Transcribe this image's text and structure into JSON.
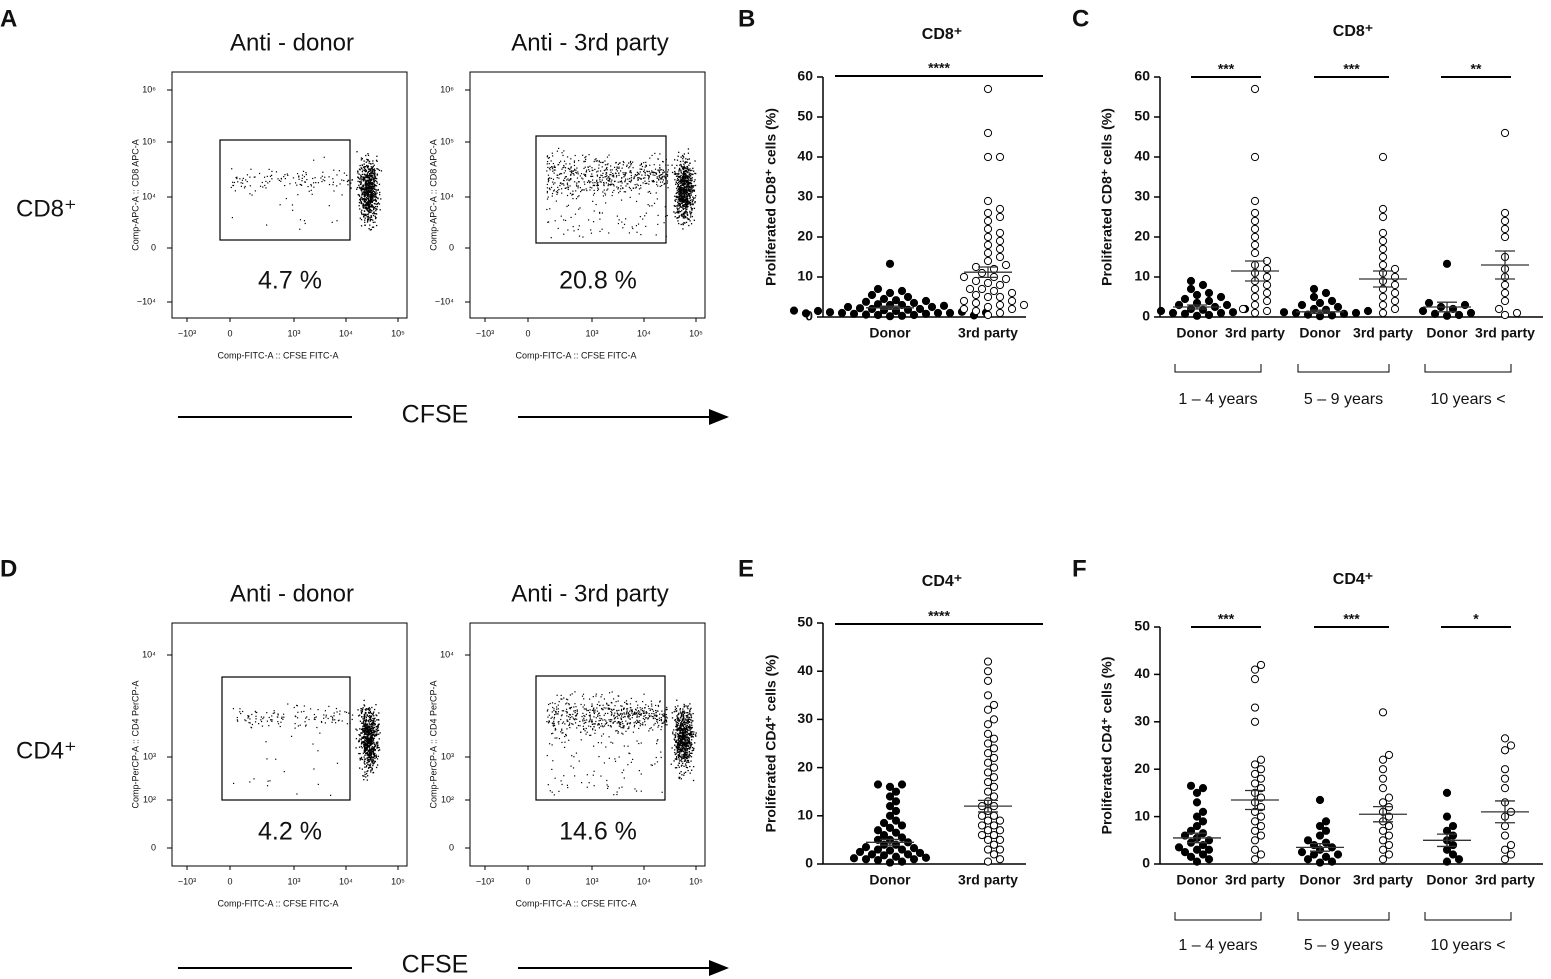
{
  "panel_labels": [
    "A",
    "B",
    "C",
    "D",
    "E",
    "F"
  ],
  "cfse_label": "CFSE",
  "flow_x_ticks": [
    "−10³",
    "0",
    "10³",
    "10⁴",
    "10⁵"
  ],
  "flow_rows": [
    {
      "label": "CD8⁺",
      "y_ticks": [
        "10⁶",
        "10⁵",
        "10⁴",
        "0",
        "−10⁴"
      ],
      "plots": [
        {
          "title": "Anti - donor",
          "percent": "4.7 %",
          "y_axis_label": "Comp-APC-A :: CD8 APC-A",
          "x_axis_label": "Comp-FITC-A :: CFSE FITC-A"
        },
        {
          "title": "Anti - 3rd party",
          "percent": "20.8 %",
          "y_axis_label": "Comp-APC-A :: CD8 APC-A",
          "x_axis_label": "Comp-FITC-A :: CFSE FITC-A"
        }
      ]
    },
    {
      "label": "CD4⁺",
      "y_ticks": [
        "10⁴",
        "10³",
        "10²",
        "0"
      ],
      "plots": [
        {
          "title": "Anti - donor",
          "percent": "4.2 %",
          "y_axis_label": "Comp-PerCP-A :: CD4 PerCP-A",
          "x_axis_label": "Comp-FITC-A :: CFSE FITC-A"
        },
        {
          "title": "Anti - 3rd party",
          "percent": "14.6 %",
          "y_axis_label": "Comp-PerCP-A :: CD4 PerCP-A",
          "x_axis_label": "Comp-FITC-A :: CFSE FITC-A"
        }
      ]
    }
  ],
  "chart_data": [
    {
      "type": "dot",
      "title": "CD8⁺",
      "ylabel": "Proliferated CD8⁺ cells (%)",
      "ylim": [
        0,
        60
      ],
      "yticks": [
        0,
        10,
        20,
        30,
        40,
        50,
        60
      ],
      "significance": [
        "****"
      ],
      "groups": [
        {
          "category": "Donor",
          "color": "#000000",
          "values": [
            0.2,
            0.3,
            0.5,
            0.5,
            0.6,
            0.8,
            0.8,
            1,
            1,
            1,
            1.2,
            1.3,
            1.5,
            1.5,
            1.7,
            1.8,
            2,
            2,
            2.2,
            2.5,
            2.5,
            2.8,
            3,
            3,
            3.2,
            3.5,
            3.8,
            4,
            4.2,
            4.5,
            5,
            5.5,
            6,
            6.5,
            7,
            0.4,
            0.9,
            1.1,
            1.6,
            13.3
          ],
          "mean": 2.3,
          "sem": 0.4
        },
        {
          "category": "3rd party",
          "color": "#ffffff",
          "values": [
            0.5,
            1,
            1.5,
            2,
            2,
            2.5,
            3,
            3,
            3.5,
            4,
            4,
            5,
            5,
            5.5,
            6,
            6.5,
            7,
            7,
            8,
            8.5,
            9,
            9.5,
            10,
            10,
            11,
            12,
            12.5,
            13,
            14,
            15,
            16,
            17,
            18,
            19,
            20,
            21,
            22,
            24,
            25,
            26,
            27,
            29,
            40,
            40,
            46,
            57
          ],
          "mean": 11.2,
          "sem": 1.3
        }
      ]
    },
    {
      "type": "dot",
      "title": "CD8⁺",
      "ylabel": "Proliferated CD8⁺ cells (%)",
      "ylim": [
        0,
        60
      ],
      "yticks": [
        0,
        10,
        20,
        30,
        40,
        50,
        60
      ],
      "significance": [
        "***",
        "***",
        "**"
      ],
      "age_groups": [
        "1 – 4 years",
        "5 – 9 years",
        "10 years <"
      ],
      "groups": [
        {
          "category": "Donor",
          "color": "#000000",
          "values": [
            0.3,
            0.5,
            0.8,
            1,
            1,
            1.2,
            1.5,
            1.8,
            2,
            2,
            2.5,
            3,
            3,
            3.5,
            4,
            4.5,
            5,
            5.5,
            6,
            7,
            8,
            9
          ],
          "mean": 2.5,
          "sem": 0.5
        },
        {
          "category": "3rd party",
          "color": "#ffffff",
          "values": [
            1,
            1.5,
            2,
            3,
            4,
            5,
            6,
            7,
            8,
            9,
            10,
            11,
            12,
            13,
            14,
            16,
            18,
            20,
            22,
            24,
            26,
            29,
            40,
            57
          ],
          "mean": 11.5,
          "sem": 2.5
        },
        {
          "category": "Donor",
          "color": "#000000",
          "values": [
            0.2,
            0.4,
            0.6,
            0.8,
            1,
            1,
            1.2,
            1.5,
            1.8,
            2,
            2.5,
            3,
            3.5,
            4,
            5,
            6,
            7
          ],
          "mean": 1.3,
          "sem": 0.4
        },
        {
          "category": "3rd party",
          "color": "#ffffff",
          "values": [
            1,
            2,
            3,
            4,
            5,
            6,
            7,
            8,
            9,
            10,
            11,
            12,
            13,
            15,
            17,
            19,
            21,
            25,
            27,
            40
          ],
          "mean": 9.5,
          "sem": 2
        },
        {
          "category": "Donor",
          "color": "#000000",
          "values": [
            0.3,
            0.5,
            0.8,
            1,
            1.5,
            2,
            2.5,
            3,
            3.5,
            13.3
          ],
          "mean": 2.5,
          "sem": 1.2
        },
        {
          "category": "3rd party",
          "color": "#ffffff",
          "values": [
            0.5,
            1,
            2,
            4,
            6,
            8,
            10,
            12,
            15,
            20,
            22,
            24,
            26,
            46
          ],
          "mean": 13,
          "sem": 3.5
        }
      ]
    },
    {
      "type": "dot",
      "title": "CD4⁺",
      "ylabel": "Proliferated CD4⁺ cells (%)",
      "ylim": [
        0,
        50
      ],
      "yticks": [
        0,
        10,
        20,
        30,
        40,
        50
      ],
      "significance": [
        "****"
      ],
      "groups": [
        {
          "category": "Donor",
          "color": "#000000",
          "values": [
            0.3,
            0.5,
            0.8,
            1,
            1,
            1.3,
            1.5,
            1.8,
            2,
            2,
            2.3,
            2.5,
            2.8,
            3,
            3,
            3.3,
            3.5,
            4,
            4,
            4.5,
            5,
            5,
            5.5,
            6,
            6.5,
            7,
            7.5,
            8,
            8.5,
            9,
            10,
            11,
            12,
            13,
            14,
            15,
            16,
            16.5,
            16.5,
            1.2
          ],
          "mean": 4.5,
          "sem": 0.6
        },
        {
          "category": "3rd party",
          "color": "#ffffff",
          "values": [
            0.5,
            1,
            2,
            3,
            3,
            4,
            5,
            5,
            6,
            6,
            7,
            7,
            8,
            8,
            9,
            9,
            10,
            10,
            11,
            12,
            12,
            13,
            14,
            15,
            16,
            17,
            18,
            19,
            20,
            21,
            22,
            23,
            24,
            25,
            26,
            27,
            29,
            30,
            32,
            33,
            35,
            38,
            40,
            42
          ],
          "mean": 12,
          "sem": 1.2
        }
      ]
    },
    {
      "type": "dot",
      "title": "CD4⁺",
      "ylabel": "Proliferated CD4⁺ cells (%)",
      "ylim": [
        0,
        50
      ],
      "yticks": [
        0,
        10,
        20,
        30,
        40,
        50
      ],
      "significance": [
        "***",
        "***",
        "*"
      ],
      "age_groups": [
        "1 – 4 years",
        "5 – 9 years",
        "10 years <"
      ],
      "groups": [
        {
          "category": "Donor",
          "color": "#000000",
          "values": [
            0.5,
            1,
            1.5,
            2,
            2.5,
            3,
            3,
            3.5,
            4,
            4.5,
            5,
            5.5,
            6,
            6.5,
            7,
            8,
            9,
            10,
            11,
            13,
            15,
            16,
            16.5
          ],
          "mean": 5.5,
          "sem": 1
        },
        {
          "category": "3rd party",
          "color": "#ffffff",
          "values": [
            1,
            2,
            3,
            5,
            6,
            7,
            8,
            9,
            10,
            11,
            12,
            13,
            14,
            15,
            16,
            17,
            18,
            19,
            20,
            21,
            22,
            30,
            33,
            39,
            41,
            42
          ],
          "mean": 13.5,
          "sem": 2
        },
        {
          "category": "Donor",
          "color": "#000000",
          "values": [
            0.3,
            0.5,
            1,
            1.5,
            2,
            2,
            2.5,
            3,
            3.5,
            4,
            4.5,
            5,
            6,
            7,
            8,
            9,
            13.5
          ],
          "mean": 3.5,
          "sem": 0.8
        },
        {
          "category": "3rd party",
          "color": "#ffffff",
          "values": [
            1,
            2,
            3,
            4,
            5,
            6,
            7,
            8,
            9,
            10,
            11,
            12,
            13,
            14,
            16,
            18,
            20,
            22,
            23,
            32
          ],
          "mean": 10.5,
          "sem": 1.6
        },
        {
          "category": "Donor",
          "color": "#000000",
          "values": [
            0.5,
            1,
            2,
            3,
            4,
            5,
            6,
            7,
            8,
            10,
            15
          ],
          "mean": 5,
          "sem": 1.3
        },
        {
          "category": "3rd party",
          "color": "#ffffff",
          "values": [
            1,
            2,
            3,
            4,
            6,
            8,
            10,
            11,
            13,
            16,
            18,
            20,
            24,
            25,
            26.5
          ],
          "mean": 11,
          "sem": 2.3
        }
      ]
    }
  ]
}
